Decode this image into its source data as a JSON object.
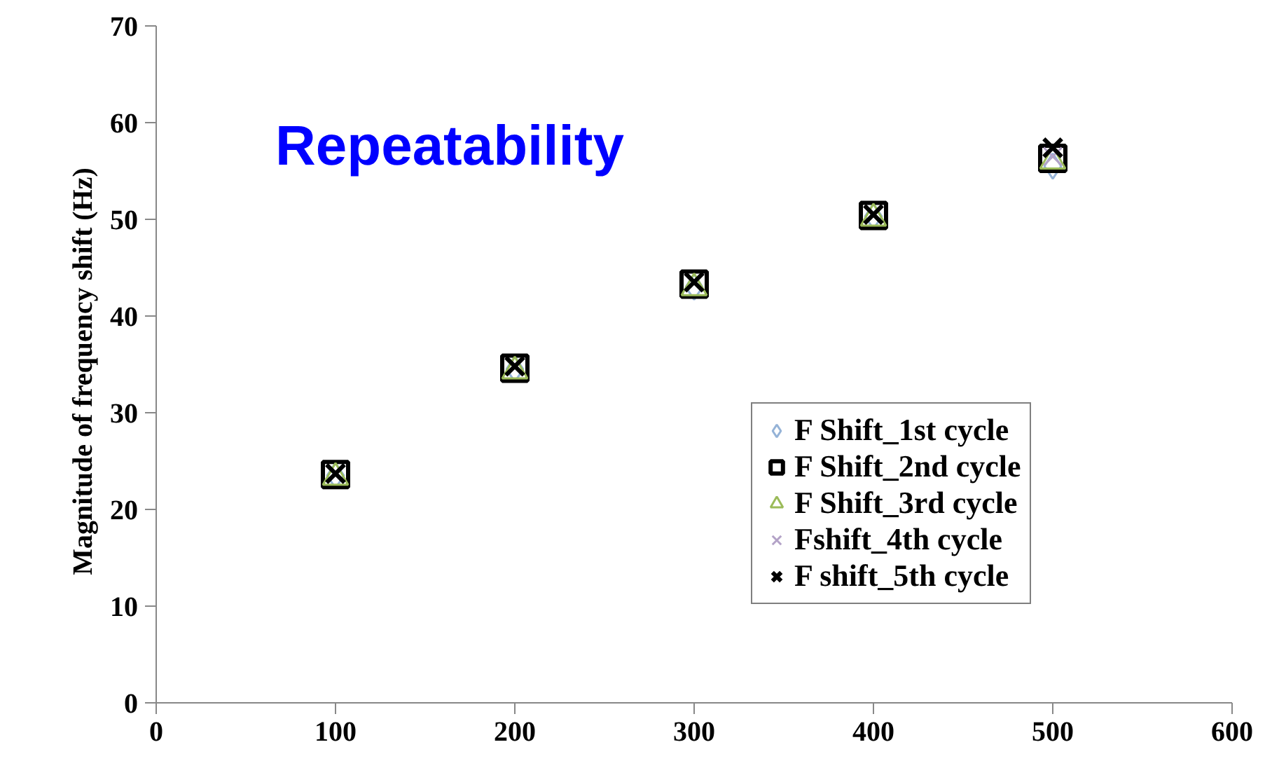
{
  "chart_data": {
    "type": "scatter",
    "title": "Repeatability",
    "ylabel": "Magnitude  of frequency shift  (Hz)",
    "x": [
      100,
      200,
      300,
      400,
      500
    ],
    "series": [
      {
        "name": "F Shift_1st cycle",
        "color": "#95b3d7",
        "marker": "diamond",
        "values": [
          23.5,
          34.5,
          43.0,
          50.3,
          55.5
        ]
      },
      {
        "name": "F Shift_2nd cycle",
        "color": "#000000",
        "marker": "square",
        "values": [
          23.6,
          34.6,
          43.3,
          50.4,
          56.3
        ]
      },
      {
        "name": "F Shift_3rd cycle",
        "color": "#9bbb59",
        "marker": "triangle",
        "values": [
          23.3,
          34.3,
          42.9,
          50.1,
          56.0
        ]
      },
      {
        "name": "Fshift_4th cycle",
        "color": "#b3a2c7",
        "marker": "cross",
        "values": [
          null,
          null,
          null,
          null,
          56.5
        ]
      },
      {
        "name": "F shift_5th cycle",
        "color": "#000000",
        "marker": "cross",
        "values": [
          23.7,
          34.8,
          43.5,
          50.5,
          57.4
        ]
      }
    ],
    "xlim": [
      0,
      600
    ],
    "xticks": [
      0,
      100,
      200,
      300,
      400,
      500,
      600
    ],
    "ylim": [
      0,
      70
    ],
    "yticks": [
      0,
      10,
      20,
      30,
      40,
      50,
      60,
      70
    ],
    "grid": false,
    "legend": "right"
  }
}
